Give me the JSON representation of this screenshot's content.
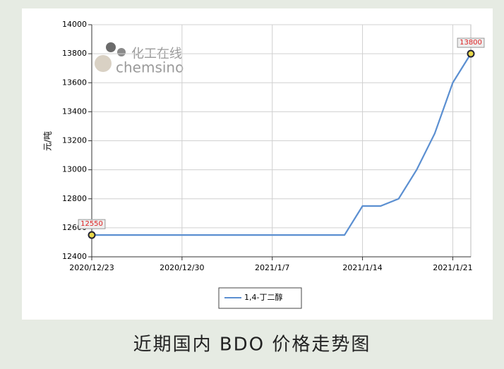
{
  "chart_data": {
    "type": "line",
    "categories": [
      "2020/12/23",
      null,
      null,
      null,
      null,
      "2020/12/30",
      null,
      null,
      null,
      null,
      "2021/1/7",
      null,
      null,
      null,
      null,
      "2021/1/14",
      null,
      null,
      null,
      null,
      "2021/1/21",
      null
    ],
    "series": [
      {
        "name": "1,4-丁二醇",
        "color": "#5b8fd1",
        "values": [
          12550,
          12550,
          12550,
          12550,
          12550,
          12550,
          12550,
          12550,
          12550,
          12550,
          12550,
          12550,
          12550,
          12550,
          12550,
          12750,
          12750,
          12800,
          13000,
          13250,
          13600,
          13800
        ]
      }
    ],
    "y_label": "元/吨",
    "ylim": [
      12400,
      14000
    ],
    "yticks": [
      12400,
      12600,
      12800,
      13000,
      13200,
      13400,
      13600,
      13800,
      14000
    ],
    "grid": true,
    "watermark": [
      "化工在线",
      "chemsino"
    ]
  },
  "caption": "近期国内 BDO 价格走势图"
}
